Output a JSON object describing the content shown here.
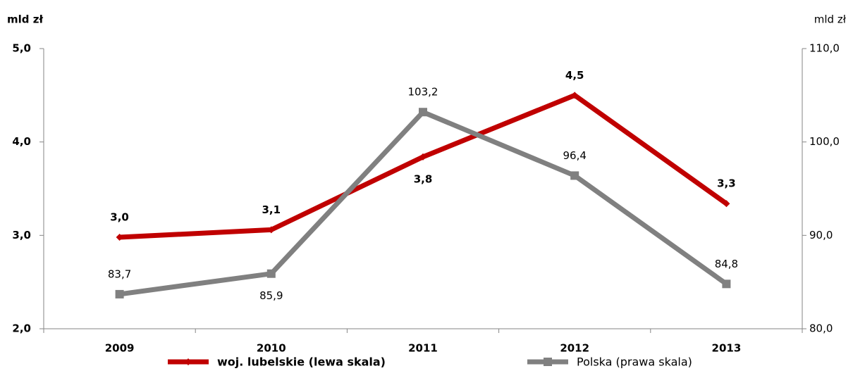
{
  "chart_data": {
    "type": "line",
    "y_label": "mld zł",
    "y2_label": "mld zł",
    "categories": [
      "2009",
      "2010",
      "2011",
      "2012",
      "2013"
    ],
    "ylim": [
      2,
      5
    ],
    "yticks": [
      {
        "value": 2,
        "label": "2,0"
      },
      {
        "value": 3,
        "label": "3,0"
      },
      {
        "value": 4,
        "label": "4,0"
      },
      {
        "value": 5,
        "label": "5,0"
      }
    ],
    "y2lim": [
      80,
      110
    ],
    "y2ticks": [
      {
        "value": 80,
        "label": "80,0"
      },
      {
        "value": 90,
        "label": "90,0"
      },
      {
        "value": 100,
        "label": "100,0"
      },
      {
        "value": 110,
        "label": "110,0"
      }
    ],
    "series": [
      {
        "name": "woj. lubelskie (lewa skala)",
        "color": "#c00000",
        "axis": "y",
        "values": [
          2.98,
          3.06,
          3.84,
          4.5,
          3.34
        ],
        "value_labels": [
          "3,0",
          "3,1",
          "3,8",
          "4,5",
          "3,3"
        ]
      },
      {
        "name": "Polska (prawa skala)",
        "color": "#808080",
        "axis": "y2",
        "values": [
          83.7,
          85.9,
          103.2,
          96.4,
          84.8
        ],
        "value_labels": [
          "83,7",
          "85,9",
          "103,2",
          "96,4",
          "84,8"
        ]
      }
    ]
  }
}
